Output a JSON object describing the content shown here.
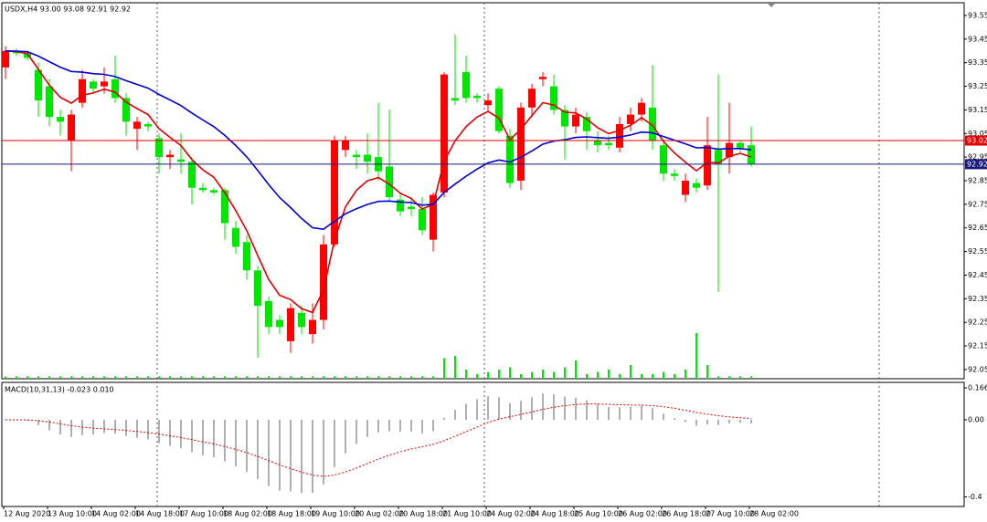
{
  "chart_data": {
    "type": "candlestick",
    "title": "USDX,H4  93.00 93.08 92.91 92.92",
    "categories": [
      "12 Aug 2020",
      null,
      null,
      null,
      "13 Aug 10:00",
      null,
      null,
      null,
      "14 Aug 02:00",
      null,
      null,
      null,
      "14 Aug 18:00",
      null,
      null,
      null,
      "17 Aug 10:00",
      null,
      null,
      null,
      "18 Aug 02:00",
      null,
      null,
      null,
      "18 Aug 18:00",
      null,
      null,
      null,
      "19 Aug 10:00",
      null,
      null,
      null,
      "20 Aug 02:00",
      null,
      null,
      null,
      "20 Aug 18:00",
      null,
      null,
      null,
      "21 Aug 10:00",
      null,
      null,
      null,
      "24 Aug 02:00",
      null,
      null,
      null,
      "24 Aug 18:00",
      null,
      null,
      null,
      "25 Aug 10:00",
      null,
      null,
      null,
      "26 Aug 02:00",
      null,
      null,
      null,
      "26 Aug 18:00",
      null,
      null,
      null,
      "27 Aug 10:00",
      null,
      null,
      null,
      "28 Aug 02:00"
    ],
    "candles": {
      "open": [
        93.33,
        93.4,
        93.39,
        93.32,
        93.25,
        93.12,
        93.02,
        93.18,
        93.27,
        93.25,
        93.28,
        93.2,
        93.07,
        93.09,
        93.03,
        92.95,
        92.94,
        92.93,
        92.82,
        92.81,
        92.81,
        92.65,
        92.59,
        92.47,
        92.34,
        92.26,
        92.17,
        92.29,
        92.2,
        92.26,
        92.58,
        92.98,
        92.96,
        92.96,
        92.95,
        92.91,
        92.77,
        92.74,
        92.73,
        92.6,
        92.8,
        93.2,
        93.31,
        93.21,
        93.17,
        93.24,
        93.04,
        92.85,
        93.16,
        93.28,
        93.25,
        93.15,
        93.08,
        93.12,
        93.02,
        93.01,
        92.99,
        93.09,
        93.13,
        93.16,
        93.0,
        92.88,
        92.79,
        92.84,
        92.83,
        92.98,
        92.95,
        93.01,
        93.0
      ],
      "high": [
        93.42,
        93.41,
        93.4,
        93.35,
        93.28,
        93.15,
        93.15,
        93.32,
        93.28,
        93.33,
        93.38,
        93.22,
        93.12,
        93.1,
        93.05,
        92.98,
        93.05,
        92.95,
        92.84,
        92.82,
        92.82,
        92.68,
        92.62,
        92.49,
        92.36,
        92.28,
        92.33,
        92.32,
        92.33,
        92.62,
        93.04,
        93.04,
        92.98,
        93.05,
        93.18,
        93.15,
        92.8,
        92.78,
        92.78,
        92.8,
        93.31,
        93.47,
        93.38,
        93.22,
        93.22,
        93.25,
        93.07,
        93.18,
        93.26,
        93.31,
        93.3,
        93.17,
        93.16,
        93.14,
        93.06,
        93.04,
        93.12,
        93.16,
        93.2,
        93.34,
        93.02,
        92.9,
        92.88,
        92.86,
        93.12,
        93.3,
        93.18,
        93.02,
        93.08
      ],
      "low": [
        93.28,
        93.38,
        93.36,
        93.12,
        93.08,
        93.04,
        92.89,
        93.16,
        93.22,
        93.22,
        93.18,
        93.04,
        92.98,
        93.06,
        92.88,
        92.9,
        92.88,
        92.75,
        92.8,
        92.79,
        92.6,
        92.54,
        92.43,
        92.1,
        92.2,
        92.2,
        92.12,
        92.2,
        92.16,
        92.22,
        92.57,
        92.95,
        92.9,
        92.88,
        92.85,
        92.76,
        92.7,
        92.7,
        92.62,
        92.55,
        92.78,
        93.17,
        93.18,
        93.18,
        93.14,
        93.05,
        92.82,
        92.81,
        93.12,
        93.25,
        93.13,
        92.94,
        93.05,
        92.98,
        92.97,
        92.98,
        92.97,
        93.06,
        93.1,
        92.98,
        92.85,
        92.85,
        92.76,
        92.8,
        92.81,
        92.38,
        92.88,
        92.97,
        92.91
      ],
      "close": [
        93.4,
        93.39,
        93.37,
        93.19,
        93.12,
        93.1,
        93.13,
        93.28,
        93.24,
        93.27,
        93.2,
        93.1,
        93.1,
        93.08,
        92.95,
        92.96,
        92.93,
        92.82,
        92.81,
        92.8,
        92.67,
        92.57,
        92.47,
        92.32,
        92.23,
        92.23,
        92.31,
        92.23,
        92.26,
        92.58,
        93.02,
        93.02,
        92.95,
        92.93,
        92.89,
        92.78,
        92.72,
        92.73,
        92.64,
        92.79,
        93.3,
        93.19,
        93.2,
        93.2,
        93.19,
        93.06,
        92.84,
        93.16,
        93.24,
        93.29,
        93.15,
        93.08,
        93.13,
        93.06,
        93.0,
        93.0,
        93.09,
        93.13,
        93.18,
        93.02,
        92.88,
        92.87,
        92.85,
        92.82,
        93.0,
        92.92,
        93.01,
        92.99,
        92.92
      ]
    },
    "volume": [
      1,
      1,
      1,
      1,
      1,
      1,
      1,
      1,
      1,
      1,
      1,
      1,
      1,
      1,
      1,
      1,
      1,
      1,
      1,
      1,
      1,
      1,
      1,
      1,
      1,
      1,
      1,
      1,
      1,
      1,
      1,
      1,
      1,
      1,
      1,
      1,
      1,
      1,
      1,
      1,
      9,
      10,
      4,
      2,
      3,
      4,
      5,
      2,
      3,
      4,
      3,
      5,
      8,
      2,
      3,
      4,
      2,
      6,
      2,
      2,
      3,
      2,
      4,
      20,
      6,
      1,
      1,
      1,
      1
    ],
    "bull_color": "#ff0000",
    "bear_color": "#00e600",
    "ylim": [
      92.011,
      93.604
    ],
    "yticks": [
      93.55,
      93.45,
      93.35,
      93.25,
      93.15,
      93.05,
      92.95,
      92.85,
      92.75,
      92.65,
      92.55,
      92.45,
      92.35,
      92.25,
      92.15,
      92.05
    ],
    "ask_line": {
      "value": 93.02,
      "color": "#e00000"
    },
    "bid_line": {
      "value": 92.92,
      "color": "#1a1a7a"
    },
    "macd": {
      "label": "MACD(10,31,13) -0.023 0.010",
      "ylim": [
        -0.45,
        0.194
      ],
      "yticks": [
        0.166,
        {
          "value": 0,
          "label": "0.00"
        },
        -0.4
      ]
    }
  }
}
